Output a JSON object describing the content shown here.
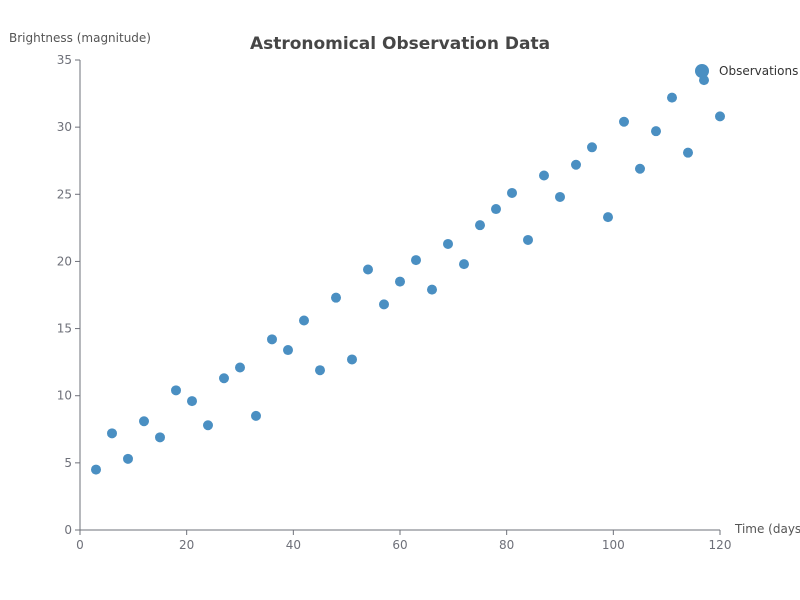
{
  "chart_data": {
    "type": "scatter",
    "title": "Astronomical Observation Data",
    "xlabel": "Time (days)",
    "ylabel": "Brightness (magnitude)",
    "xlim": [
      0,
      120
    ],
    "ylim": [
      0,
      35
    ],
    "x_ticks": [
      0,
      20,
      40,
      60,
      80,
      100,
      120
    ],
    "y_ticks": [
      0,
      5,
      10,
      15,
      20,
      25,
      30,
      35
    ],
    "grid": false,
    "legend_position": "top-right",
    "series": [
      {
        "name": "Observations",
        "color": "#4a8fc2",
        "points": [
          [
            3,
            4.5
          ],
          [
            6,
            7.2
          ],
          [
            9,
            5.3
          ],
          [
            12,
            8.1
          ],
          [
            15,
            6.9
          ],
          [
            18,
            10.4
          ],
          [
            21,
            9.6
          ],
          [
            24,
            7.8
          ],
          [
            27,
            11.3
          ],
          [
            30,
            12.1
          ],
          [
            33,
            8.5
          ],
          [
            36,
            14.2
          ],
          [
            39,
            13.4
          ],
          [
            42,
            15.6
          ],
          [
            45,
            11.9
          ],
          [
            48,
            17.3
          ],
          [
            51,
            12.7
          ],
          [
            54,
            19.4
          ],
          [
            57,
            16.8
          ],
          [
            60,
            18.5
          ],
          [
            63,
            20.1
          ],
          [
            66,
            17.9
          ],
          [
            69,
            21.3
          ],
          [
            72,
            19.8
          ],
          [
            75,
            22.7
          ],
          [
            78,
            23.9
          ],
          [
            81,
            25.1
          ],
          [
            84,
            21.6
          ],
          [
            87,
            26.4
          ],
          [
            90,
            24.8
          ],
          [
            93,
            27.2
          ],
          [
            96,
            28.5
          ],
          [
            99,
            23.3
          ],
          [
            102,
            30.4
          ],
          [
            105,
            26.9
          ],
          [
            108,
            29.7
          ],
          [
            111,
            32.2
          ],
          [
            114,
            28.1
          ],
          [
            117,
            33.5
          ],
          [
            120,
            30.8
          ]
        ]
      }
    ]
  }
}
